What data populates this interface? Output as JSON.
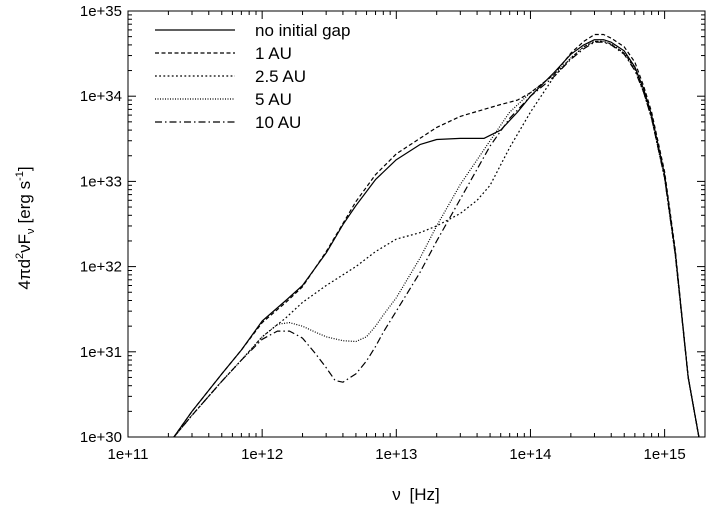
{
  "chart_data": {
    "type": "line",
    "xlabel_base": "ν",
    "xlabel_unit": "[Hz]",
    "ylabel_prefix": "4πd",
    "ylabel_sup1": "2",
    "ylabel_mid": "νF",
    "ylabel_sub": "ν",
    "ylabel_unit": "[erg s",
    "ylabel_sup2": "-1",
    "ylabel_close": "]",
    "xscale": "log",
    "yscale": "log",
    "xlim": [
      100000000000.0,
      2000000000000000.0
    ],
    "ylim": [
      1e+30,
      1e+35
    ],
    "xticks": [
      100000000000.0,
      1000000000000.0,
      10000000000000.0,
      100000000000000.0,
      1000000000000000.0
    ],
    "xtick_labels": [
      "1e+11",
      "1e+12",
      "1e+13",
      "1e+14",
      "1e+15"
    ],
    "yticks": [
      1e+30,
      1e+31,
      1e+32,
      1e+33,
      1e+34,
      1e+35
    ],
    "ytick_labels": [
      "1e+30",
      "1e+31",
      "1e+32",
      "1e+33",
      "1e+34",
      "1e+35"
    ],
    "legend_position": "top-left",
    "grid": false,
    "series": [
      {
        "name": "no initial gap",
        "dash": "solid",
        "x": [
          220000000000.0,
          300000000000.0,
          500000000000.0,
          700000000000.0,
          1000000000000.0,
          1500000000000.0,
          2000000000000.0,
          3000000000000.0,
          4000000000000.0,
          5000000000000.0,
          7000000000000.0,
          10000000000000.0,
          15000000000000.0,
          20000000000000.0,
          30000000000000.0,
          45000000000000.0,
          60000000000000.0,
          80000000000000.0,
          100000000000000.0,
          150000000000000.0,
          200000000000000.0,
          250000000000000.0,
          300000000000000.0,
          350000000000000.0,
          400000000000000.0,
          500000000000000.0,
          600000000000000.0,
          700000000000000.0,
          800000000000000.0,
          1000000000000000.0,
          1200000000000000.0,
          1500000000000000.0,
          1800000000000000.0
        ],
        "y": [
          1e+30,
          2e+30,
          5.5e+30,
          1.05e+31,
          2.3e+31,
          4e+31,
          6e+31,
          1.45e+32,
          3.1e+32,
          5.2e+32,
          1.05e+33,
          1.8e+33,
          2.7e+33,
          3.1e+33,
          3.2e+33,
          3.2e+33,
          4e+33,
          6.5e+33,
          1e+34,
          1.9e+34,
          3.1e+34,
          4e+34,
          4.6e+34,
          4.6e+34,
          4.3e+34,
          3.4e+34,
          2.2e+34,
          1.2e+34,
          6e+33,
          1.2e+33,
          1.5e+32,
          5e+30,
          1e+30
        ]
      },
      {
        "name": "1 AU",
        "dash": "dashed",
        "x": [
          220000000000.0,
          300000000000.0,
          500000000000.0,
          700000000000.0,
          1000000000000.0,
          1500000000000.0,
          2000000000000.0,
          3000000000000.0,
          4000000000000.0,
          5000000000000.0,
          7000000000000.0,
          10000000000000.0,
          15000000000000.0,
          20000000000000.0,
          30000000000000.0,
          45000000000000.0,
          60000000000000.0,
          80000000000000.0,
          100000000000000.0,
          150000000000000.0,
          200000000000000.0,
          250000000000000.0,
          300000000000000.0,
          350000000000000.0,
          400000000000000.0,
          500000000000000.0,
          600000000000000.0,
          700000000000000.0,
          800000000000000.0,
          1000000000000000.0,
          1200000000000000.0,
          1500000000000000.0,
          1800000000000000.0
        ],
        "y": [
          1e+30,
          2e+30,
          5.5e+30,
          1.05e+31,
          2.2e+31,
          3.8e+31,
          5.8e+31,
          1.5e+32,
          3.2e+32,
          5.8e+32,
          1.2e+33,
          2.1e+33,
          3.2e+33,
          4.3e+33,
          5.8e+33,
          7e+33,
          8e+33,
          9e+33,
          1.1e+34,
          1.8e+34,
          3.2e+34,
          4.4e+34,
          5.3e+34,
          5.3e+34,
          4.8e+34,
          3.8e+34,
          2.5e+34,
          1.3e+34,
          6.5e+33,
          1.3e+33,
          1.6e+32,
          5e+30,
          1e+30
        ]
      },
      {
        "name": "2.5 AU",
        "dash": "dotted",
        "x": [
          220000000000.0,
          300000000000.0,
          500000000000.0,
          700000000000.0,
          1000000000000.0,
          1500000000000.0,
          2000000000000.0,
          3000000000000.0,
          5000000000000.0,
          7000000000000.0,
          10000000000000.0,
          15000000000000.0,
          20000000000000.0,
          30000000000000.0,
          40000000000000.0,
          50000000000000.0,
          70000000000000.0,
          100000000000000.0,
          150000000000000.0,
          200000000000000.0,
          250000000000000.0,
          300000000000000.0,
          350000000000000.0,
          400000000000000.0,
          500000000000000.0,
          600000000000000.0,
          700000000000000.0,
          800000000000000.0,
          1000000000000000.0,
          1200000000000000.0,
          1500000000000000.0,
          1800000000000000.0
        ],
        "y": [
          1e+30,
          1.8e+30,
          4.5e+30,
          8e+30,
          1.5e+31,
          2.5e+31,
          3.8e+31,
          6e+31,
          1e+32,
          1.5e+32,
          2.1e+32,
          2.5e+32,
          3e+32,
          4.2e+32,
          6e+32,
          9e+32,
          2.5e+33,
          6.5e+33,
          1.7e+34,
          2.8e+34,
          3.8e+34,
          4.4e+34,
          4.4e+34,
          4.1e+34,
          3.2e+34,
          2.1e+34,
          1.1e+34,
          5.5e+33,
          1.1e+33,
          1.4e+32,
          5e+30,
          1e+30
        ]
      },
      {
        "name": "5 AU",
        "dash": "densedot",
        "x": [
          220000000000.0,
          300000000000.0,
          500000000000.0,
          700000000000.0,
          1000000000000.0,
          1300000000000.0,
          1600000000000.0,
          2000000000000.0,
          2500000000000.0,
          3000000000000.0,
          4000000000000.0,
          5000000000000.0,
          6000000000000.0,
          7000000000000.0,
          8000000000000.0,
          10000000000000.0,
          15000000000000.0,
          20000000000000.0,
          30000000000000.0,
          50000000000000.0,
          70000000000000.0,
          100000000000000.0,
          150000000000000.0,
          200000000000000.0,
          250000000000000.0,
          300000000000000.0,
          350000000000000.0,
          400000000000000.0,
          500000000000000.0,
          600000000000000.0,
          700000000000000.0,
          800000000000000.0,
          1000000000000000.0,
          1200000000000000.0,
          1500000000000000.0,
          1800000000000000.0
        ],
        "y": [
          1e+30,
          1.8e+30,
          4.5e+30,
          8e+30,
          1.5e+31,
          2.1e+31,
          2.2e+31,
          2e+31,
          1.7e+31,
          1.5e+31,
          1.35e+31,
          1.32e+31,
          1.5e+31,
          2e+31,
          2.7e+31,
          4.3e+31,
          1.25e+32,
          3e+32,
          9.2e+32,
          3e+33,
          6.5e+33,
          1.1e+34,
          1.8e+34,
          2.8e+34,
          3.8e+34,
          4.4e+34,
          4.4e+34,
          4.1e+34,
          3.2e+34,
          2.1e+34,
          1.1e+34,
          5.5e+33,
          1.1e+33,
          1.4e+32,
          5e+30,
          1e+30
        ]
      },
      {
        "name": "10 AU",
        "dash": "dashdot",
        "x": [
          220000000000.0,
          300000000000.0,
          500000000000.0,
          700000000000.0,
          1000000000000.0,
          1300000000000.0,
          1600000000000.0,
          2000000000000.0,
          2500000000000.0,
          3000000000000.0,
          3500000000000.0,
          4000000000000.0,
          5000000000000.0,
          6000000000000.0,
          7000000000000.0,
          8000000000000.0,
          10000000000000.0,
          15000000000000.0,
          20000000000000.0,
          30000000000000.0,
          50000000000000.0,
          70000000000000.0,
          100000000000000.0,
          150000000000000.0,
          200000000000000.0,
          250000000000000.0,
          300000000000000.0,
          350000000000000.0,
          400000000000000.0,
          500000000000000.0,
          600000000000000.0,
          700000000000000.0,
          800000000000000.0,
          1000000000000000.0,
          1200000000000000.0,
          1500000000000000.0,
          1800000000000000.0
        ],
        "y": [
          1e+30,
          1.8e+30,
          4.5e+30,
          8e+30,
          1.4e+31,
          1.75e+31,
          1.75e+31,
          1.45e+31,
          9.5e+30,
          6.5e+30,
          4.6e+30,
          4.4e+30,
          5.5e+30,
          7.8e+30,
          1.15e+31,
          1.7e+31,
          3e+31,
          8.5e+31,
          2e+32,
          6.2e+32,
          2.6e+33,
          5.5e+33,
          1e+34,
          1.7e+34,
          2.7e+34,
          3.6e+34,
          4.3e+34,
          4.3e+34,
          4e+34,
          3.1e+34,
          2e+34,
          1.1e+34,
          5.5e+33,
          1.1e+33,
          1.4e+32,
          5e+30,
          1e+30
        ]
      }
    ]
  }
}
